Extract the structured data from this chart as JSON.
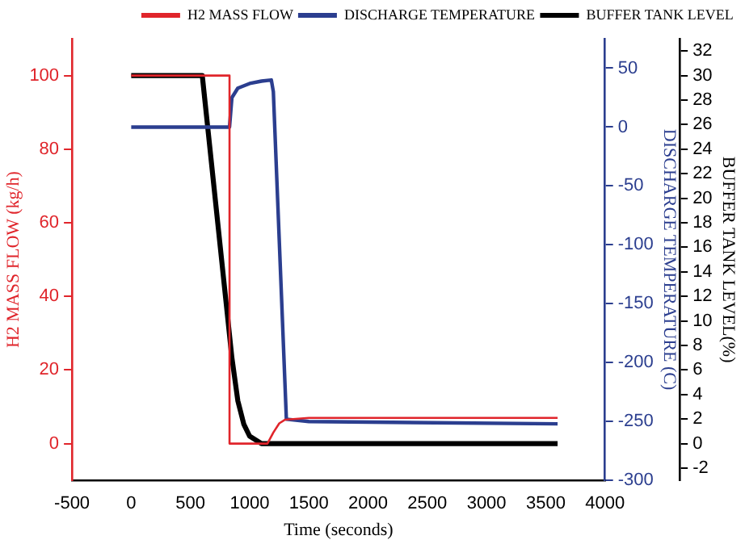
{
  "chart_data": {
    "type": "line",
    "xlabel": "Time (seconds)",
    "ylabel": "H2 MASS FLOW (kg/h)",
    "y2label": "DISCHARGE TEMPERATURE (C)",
    "y3label": "BUFFER TANK LEVEL(%)",
    "xlim": [
      -500,
      4000
    ],
    "xticks": [
      -500,
      0,
      500,
      1000,
      1500,
      2000,
      2500,
      3000,
      3500,
      4000
    ],
    "ylim": [
      -10,
      110
    ],
    "yticks": [
      0,
      20,
      40,
      60,
      80,
      100
    ],
    "y2lim": [
      -300,
      75
    ],
    "y2ticks": [
      -300,
      -250,
      -200,
      -150,
      -100,
      -50,
      0,
      50
    ],
    "y3lim": [
      -3,
      33
    ],
    "y3ticks": [
      -2,
      0,
      2,
      4,
      6,
      8,
      10,
      12,
      14,
      16,
      18,
      20,
      22,
      24,
      26,
      28,
      30,
      32
    ],
    "grid": false,
    "legend": "top right",
    "marker": "none",
    "line_style": "solid",
    "series": [
      {
        "name": "H2 MASS FLOW",
        "color": "#e0252b",
        "x": [
          0,
          830,
          830,
          1150,
          1200,
          1250,
          1300,
          1500,
          3600
        ],
        "values": [
          100,
          100,
          0,
          0,
          3,
          5.5,
          6.5,
          7,
          7
        ]
      },
      {
        "name": "DISCHARGE TEMPERATURE",
        "color": "#2b3e8f",
        "axis": "y2",
        "x": [
          0,
          830,
          850,
          900,
          1000,
          1100,
          1183,
          1200,
          1310,
          1500,
          3600
        ],
        "values": [
          0,
          0,
          25,
          33,
          37,
          39,
          40,
          30,
          -248,
          -250,
          -252
        ]
      },
      {
        "name": "BUFFER TANK LEVEL",
        "color": "#000000",
        "axis": "y3",
        "x": [
          0,
          600,
          700,
          800,
          850,
          900,
          950,
          1000,
          1100,
          3600
        ],
        "values": [
          30,
          30,
          20.8,
          11.6,
          7,
          3.5,
          1.6,
          0.6,
          0,
          0
        ]
      }
    ]
  }
}
